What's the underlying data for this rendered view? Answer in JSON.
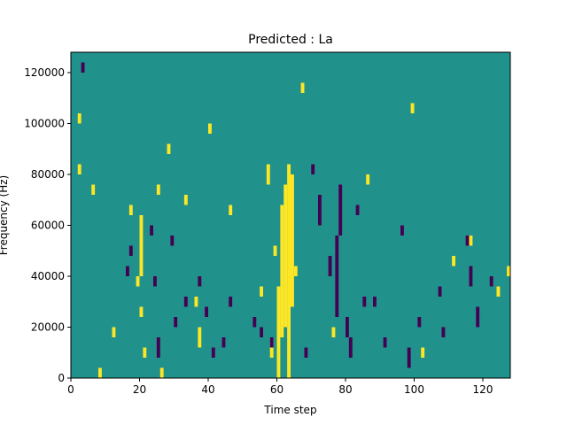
{
  "chart_data": {
    "type": "heatmap",
    "title": "Predicted : La",
    "xlabel": "Time step",
    "ylabel": "Frequency (Hz)",
    "xlim": [
      0,
      128
    ],
    "ylim": [
      0,
      128000
    ],
    "x_ticks": [
      0,
      20,
      40,
      60,
      80,
      100,
      120
    ],
    "y_ticks": [
      0,
      20000,
      40000,
      60000,
      80000,
      100000,
      120000
    ],
    "x_tick_labels": [
      "0",
      "20",
      "40",
      "60",
      "80",
      "100",
      "120"
    ],
    "y_tick_labels": [
      "0",
      "20000",
      "40000",
      "60000",
      "80000",
      "100000",
      "120000"
    ],
    "grid": false,
    "colormap": "viridis",
    "colors": {
      "background": "#21918c",
      "high": "#fde725",
      "low": "#440154"
    },
    "description": "Ternary mask over time steps (x) and frequency bins (y); most cells are mid value, with scattered high and low cells and a dense high band around time steps 58-64.",
    "mask_rows": 128,
    "cells": {
      "high": [
        [
          2,
          80000,
          84000
        ],
        [
          2,
          100000,
          104000
        ],
        [
          6,
          72000,
          76000
        ],
        [
          8,
          0,
          4000
        ],
        [
          12,
          16000,
          20000
        ],
        [
          17,
          64000,
          68000
        ],
        [
          19,
          36000,
          40000
        ],
        [
          20,
          40000,
          64000
        ],
        [
          20,
          24000,
          28000
        ],
        [
          21,
          8000,
          12000
        ],
        [
          25,
          72000,
          76000
        ],
        [
          26,
          0,
          4000
        ],
        [
          28,
          88000,
          92000
        ],
        [
          33,
          68000,
          72000
        ],
        [
          36,
          28000,
          32000
        ],
        [
          37,
          12000,
          20000
        ],
        [
          40,
          96000,
          100000
        ],
        [
          46,
          64000,
          68000
        ],
        [
          55,
          32000,
          36000
        ],
        [
          57,
          76000,
          84000
        ],
        [
          58,
          8000,
          16000
        ],
        [
          59,
          48000,
          52000
        ],
        [
          60,
          0,
          36000
        ],
        [
          61,
          16000,
          68000
        ],
        [
          62,
          20000,
          76000
        ],
        [
          63,
          0,
          84000
        ],
        [
          64,
          28000,
          80000
        ],
        [
          65,
          40000,
          44000
        ],
        [
          67,
          112000,
          116000
        ],
        [
          76,
          16000,
          20000
        ],
        [
          86,
          76000,
          80000
        ],
        [
          99,
          104000,
          108000
        ],
        [
          102,
          8000,
          12000
        ],
        [
          111,
          44000,
          48000
        ],
        [
          116,
          52000,
          56000
        ],
        [
          124,
          32000,
          36000
        ],
        [
          127,
          40000,
          44000
        ]
      ],
      "low": [
        [
          3,
          120000,
          124000
        ],
        [
          16,
          40000,
          44000
        ],
        [
          17,
          48000,
          52000
        ],
        [
          23,
          56000,
          60000
        ],
        [
          24,
          36000,
          40000
        ],
        [
          25,
          8000,
          16000
        ],
        [
          29,
          52000,
          56000
        ],
        [
          30,
          20000,
          24000
        ],
        [
          33,
          28000,
          32000
        ],
        [
          37,
          36000,
          40000
        ],
        [
          39,
          24000,
          28000
        ],
        [
          41,
          8000,
          12000
        ],
        [
          44,
          12000,
          16000
        ],
        [
          46,
          28000,
          32000
        ],
        [
          53,
          20000,
          24000
        ],
        [
          55,
          16000,
          20000
        ],
        [
          58,
          12000,
          16000
        ],
        [
          68,
          8000,
          12000
        ],
        [
          70,
          80000,
          84000
        ],
        [
          72,
          60000,
          72000
        ],
        [
          75,
          40000,
          48000
        ],
        [
          77,
          24000,
          56000
        ],
        [
          78,
          56000,
          76000
        ],
        [
          80,
          16000,
          24000
        ],
        [
          81,
          8000,
          16000
        ],
        [
          83,
          64000,
          68000
        ],
        [
          85,
          28000,
          32000
        ],
        [
          88,
          28000,
          32000
        ],
        [
          91,
          12000,
          16000
        ],
        [
          96,
          56000,
          60000
        ],
        [
          98,
          4000,
          12000
        ],
        [
          101,
          20000,
          24000
        ],
        [
          107,
          32000,
          36000
        ],
        [
          108,
          16000,
          20000
        ],
        [
          115,
          52000,
          56000
        ],
        [
          116,
          36000,
          44000
        ],
        [
          118,
          20000,
          28000
        ],
        [
          122,
          36000,
          40000
        ]
      ]
    }
  }
}
